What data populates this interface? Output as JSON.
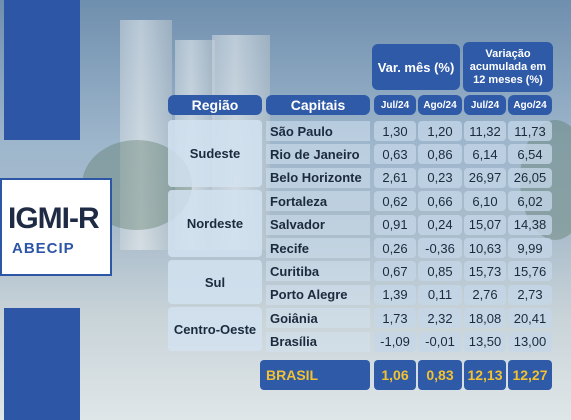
{
  "logo": {
    "main": "IGMI-R",
    "sub": "ABECIP"
  },
  "header": {
    "var_mes": "Var. mês (%)",
    "variacao": "Variação acumulada em 12 meses (%)",
    "regiao": "Região",
    "capitais": "Capitais",
    "cols": [
      "Jul/24",
      "Ago/24",
      "Jul/24",
      "Ago/24"
    ]
  },
  "regions": [
    "Sudeste",
    "Nordeste",
    "Sul",
    "Centro-Oeste"
  ],
  "rows": [
    {
      "city": "São Paulo",
      "v": [
        "1,30",
        "1,20",
        "11,32",
        "11,73"
      ]
    },
    {
      "city": "Rio de Janeiro",
      "v": [
        "0,63",
        "0,86",
        "6,14",
        "6,54"
      ]
    },
    {
      "city": "Belo Horizonte",
      "v": [
        "2,61",
        "0,23",
        "26,97",
        "26,05"
      ]
    },
    {
      "city": "Fortaleza",
      "v": [
        "0,62",
        "0,66",
        "6,10",
        "6,02"
      ]
    },
    {
      "city": "Salvador",
      "v": [
        "0,91",
        "0,24",
        "15,07",
        "14,38"
      ]
    },
    {
      "city": "Recife",
      "v": [
        "0,26",
        "-0,36",
        "10,63",
        "9,99"
      ]
    },
    {
      "city": "Curitiba",
      "v": [
        "0,67",
        "0,85",
        "15,73",
        "15,76"
      ]
    },
    {
      "city": "Porto Alegre",
      "v": [
        "1,39",
        "0,11",
        "2,76",
        "2,73"
      ]
    },
    {
      "city": "Goiânia",
      "v": [
        "1,73",
        "2,32",
        "18,08",
        "20,41"
      ]
    },
    {
      "city": "Brasília",
      "v": [
        "-1,09",
        "-0,01",
        "13,50",
        "13,00"
      ]
    }
  ],
  "brasil": {
    "label": "BRASIL",
    "v": [
      "1,06",
      "0,83",
      "12,13",
      "12,27"
    ]
  }
}
